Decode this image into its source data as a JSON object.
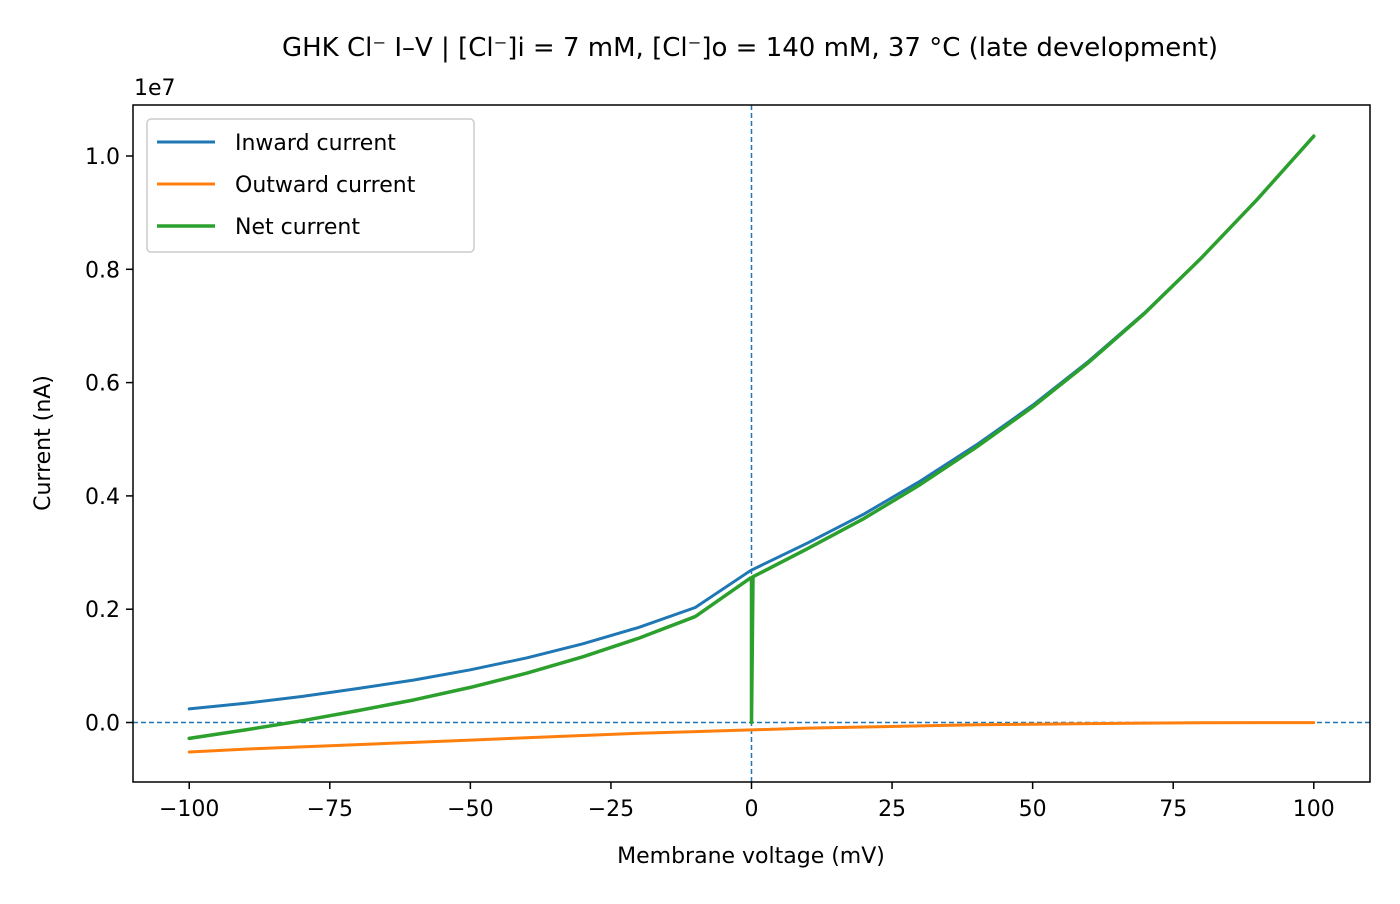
{
  "chart_data": {
    "type": "line",
    "title": "GHK Cl⁻ I–V  |  [Cl⁻]i = 7 mM, [Cl⁻]o = 140 mM, 37 °C  (late development)",
    "xlabel": "Membrane voltage (mV)",
    "ylabel": "Current (nA)",
    "y_offset_label": "1e7",
    "xlim": [
      -110,
      110
    ],
    "ylim": [
      -0.105,
      1.09
    ],
    "xticks": [
      -100,
      -75,
      -50,
      -25,
      0,
      25,
      50,
      75,
      100
    ],
    "xtick_labels": [
      "−100",
      "−75",
      "−50",
      "−25",
      "0",
      "25",
      "50",
      "75",
      "100"
    ],
    "yticks": [
      0.0,
      0.2,
      0.4,
      0.6,
      0.8,
      1.0
    ],
    "ytick_labels": [
      "0.0",
      "0.2",
      "0.4",
      "0.6",
      "0.8",
      "1.0"
    ],
    "grid": false,
    "legend_position": "top-left",
    "reference_lines": {
      "x": 0,
      "y": 0,
      "style": "dashed",
      "color": "#1f77b4"
    },
    "x": [
      -100,
      -90,
      -80,
      -70,
      -60,
      -50,
      -40,
      -30,
      -20,
      -10,
      -0.2,
      0.2,
      10,
      20,
      30,
      40,
      50,
      60,
      70,
      80,
      90,
      100
    ],
    "series": [
      {
        "name": "Inward current",
        "color": "#1f77b4",
        "values": [
          0.024,
          0.034,
          0.046,
          0.06,
          0.075,
          0.093,
          0.114,
          0.139,
          0.168,
          0.203,
          0.268,
          0.27,
          0.317,
          0.368,
          0.426,
          0.49,
          0.56,
          0.638,
          0.724,
          0.82,
          0.924,
          1.035
        ]
      },
      {
        "name": "Outward current",
        "color": "#ff7f0e",
        "values": [
          -0.052,
          -0.047,
          -0.043,
          -0.039,
          -0.035,
          -0.031,
          -0.027,
          -0.023,
          -0.019,
          -0.016,
          -0.013,
          -0.013,
          -0.01,
          -0.008,
          -0.006,
          -0.004,
          -0.003,
          -0.002,
          -0.001,
          -0.0005,
          -0.0002,
          -0.0001
        ]
      },
      {
        "name": "Net current",
        "color": "#2ca02c",
        "values": [
          -0.028,
          -0.013,
          0.003,
          0.021,
          0.04,
          0.062,
          0.087,
          0.116,
          0.149,
          0.187,
          0.255,
          0.257,
          0.307,
          0.36,
          0.42,
          0.486,
          0.557,
          0.636,
          0.723,
          0.82,
          0.924,
          1.035
        ]
      }
    ],
    "annotations": [
      {
        "series": "Net current",
        "x": 0,
        "y_from": 0.0,
        "y_to": 0.255,
        "description": "vertical spike to zero at 0 mV"
      }
    ]
  }
}
